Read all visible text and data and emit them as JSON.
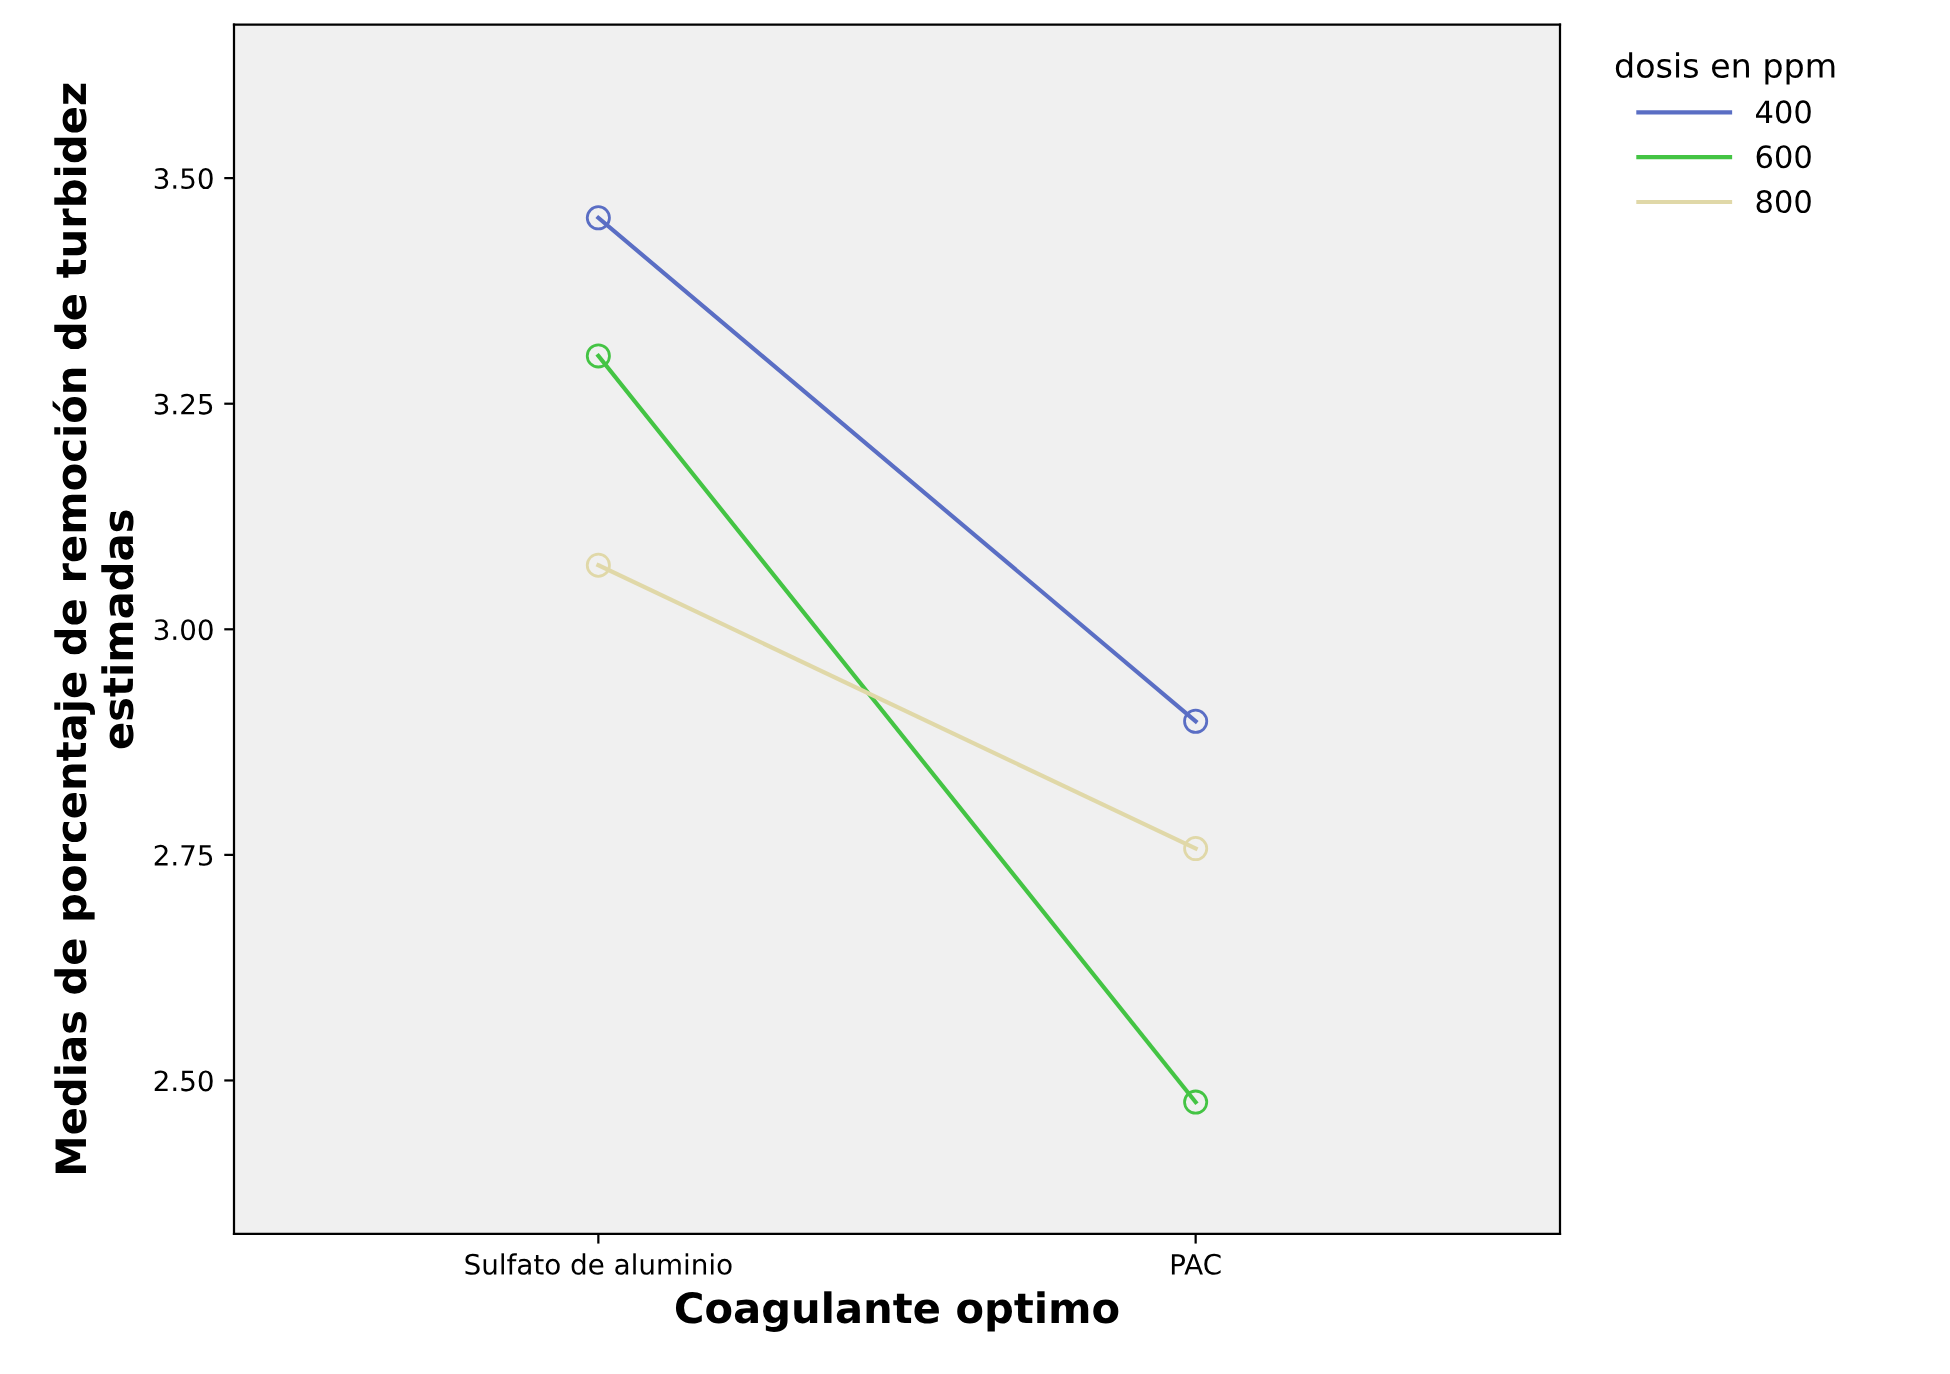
{
  "chart_data": {
    "type": "line",
    "xlabel": "Coagulante optimo",
    "ylabel": "Medias de porcentaje de remoción de turbidez estimadas",
    "legend_title": "dosis en ppm",
    "categories": [
      "Sulfato de aluminio",
      "PAC"
    ],
    "series": [
      {
        "name": "400",
        "color": "#5a6ec4",
        "values": [
          3.456,
          2.898
        ]
      },
      {
        "name": "600",
        "color": "#44c444",
        "values": [
          3.303,
          2.476
        ]
      },
      {
        "name": "800",
        "color": "#e0d8a8",
        "values": [
          3.071,
          2.757
        ]
      }
    ],
    "ylim": [
      2.33,
      3.67
    ],
    "yticks": [
      {
        "value": 2.5,
        "label": "2.50"
      },
      {
        "value": 2.75,
        "label": "2.75"
      },
      {
        "value": 3.0,
        "label": "3.00"
      },
      {
        "value": 3.25,
        "label": "3.25"
      },
      {
        "value": 3.5,
        "label": "3.50"
      }
    ],
    "marker": "circle",
    "grid": false,
    "legend": "top right"
  }
}
